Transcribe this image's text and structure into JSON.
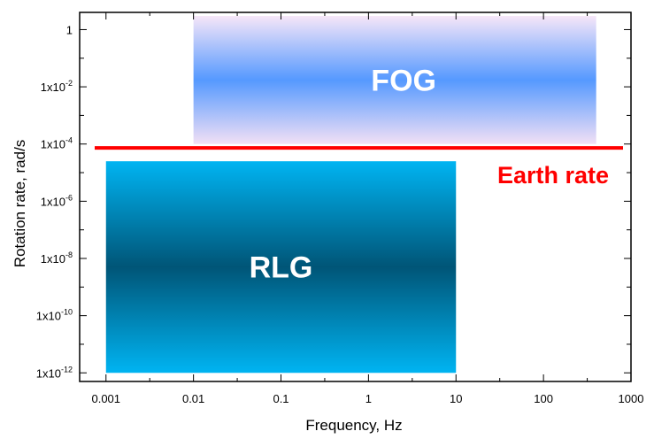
{
  "chart_data": {
    "type": "area",
    "xlabel": "Frequency, Hz",
    "ylabel": "Rotation rate, rad/s",
    "xscale": "log",
    "yscale": "log",
    "xlim": [
      0.0005,
      1000
    ],
    "ylim": [
      5e-13,
      4
    ],
    "x_ticks": [
      {
        "value": 0.001,
        "label": "0.001"
      },
      {
        "value": 0.01,
        "label": "0.01"
      },
      {
        "value": 0.1,
        "label": "0.1"
      },
      {
        "value": 1,
        "label": "1"
      },
      {
        "value": 10,
        "label": "10"
      },
      {
        "value": 100,
        "label": "100"
      },
      {
        "value": 1000,
        "label": "1000"
      }
    ],
    "y_ticks": [
      {
        "value": 1,
        "mant": "1",
        "exp": ""
      },
      {
        "value": 0.01,
        "mant": "1x10",
        "exp": "-2"
      },
      {
        "value": 0.0001,
        "mant": "1x10",
        "exp": "-4"
      },
      {
        "value": 1e-06,
        "mant": "1x10",
        "exp": "-6"
      },
      {
        "value": 1e-08,
        "mant": "1x10",
        "exp": "-8"
      },
      {
        "value": 1e-10,
        "mant": "1x10",
        "exp": "-10"
      },
      {
        "value": 1e-12,
        "mant": "1x10",
        "exp": "-12"
      }
    ],
    "regions": [
      {
        "name": "FOG",
        "x": [
          0.01,
          400
        ],
        "y": [
          0.0001,
          3
        ],
        "colors": [
          "#ffffff",
          "#5599ff",
          "#f2e0f5"
        ]
      },
      {
        "name": "RLG",
        "x": [
          0.001,
          10
        ],
        "y": [
          1e-12,
          2.5e-05
        ],
        "colors": [
          "#00b0f0",
          "#005577",
          "#00b0f0"
        ]
      }
    ],
    "reference_line": {
      "name": "Earth rate",
      "value": 7.29e-05,
      "color": "#ff0000"
    },
    "grid": false,
    "legend": "none"
  }
}
